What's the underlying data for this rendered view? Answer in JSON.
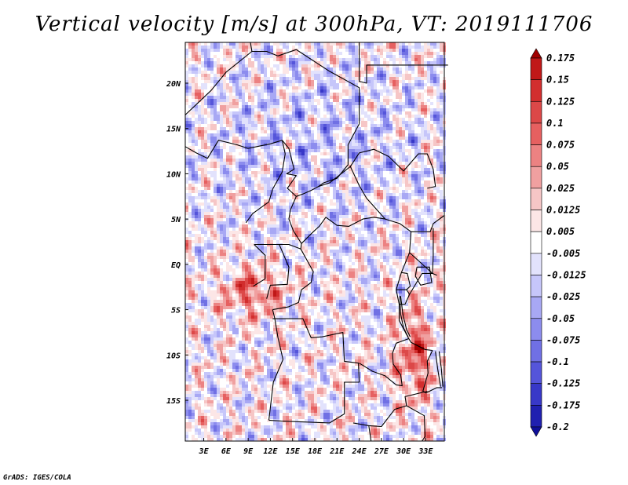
{
  "title": "Vertical velocity [m/s] at 300hPa, VT: 2019111706",
  "credit": "GrADS: IGES/COLA",
  "chart_data": {
    "type": "heatmap",
    "title": "Vertical velocity [m/s] at 300hPa, VT: 2019111706",
    "variable": "Vertical velocity",
    "units": "m/s",
    "level": "300hPa",
    "valid_time": "2019111706",
    "x_range": [
      0.5,
      35.5
    ],
    "y_range": [
      -19.5,
      24.5
    ],
    "x_ticks": [
      {
        "value": 3,
        "label": "3E"
      },
      {
        "value": 6,
        "label": "6E"
      },
      {
        "value": 9,
        "label": "9E"
      },
      {
        "value": 12,
        "label": "12E"
      },
      {
        "value": 15,
        "label": "15E"
      },
      {
        "value": 18,
        "label": "18E"
      },
      {
        "value": 21,
        "label": "21E"
      },
      {
        "value": 24,
        "label": "24E"
      },
      {
        "value": 27,
        "label": "27E"
      },
      {
        "value": 30,
        "label": "30E"
      },
      {
        "value": 33,
        "label": "33E"
      }
    ],
    "y_ticks": [
      {
        "value": 20,
        "label": "20N"
      },
      {
        "value": 15,
        "label": "15N"
      },
      {
        "value": 10,
        "label": "10N"
      },
      {
        "value": 5,
        "label": "5N"
      },
      {
        "value": 0,
        "label": "EQ"
      },
      {
        "value": -5,
        "label": "5S"
      },
      {
        "value": -10,
        "label": "10S"
      },
      {
        "value": -15,
        "label": "15S"
      }
    ],
    "colorbar": {
      "levels": [
        "0.175",
        "0.15",
        "0.125",
        "0.1",
        "0.075",
        "0.05",
        "0.025",
        "0.0125",
        "0.005",
        "-0.005",
        "-0.0125",
        "-0.025",
        "-0.05",
        "-0.075",
        "-0.1",
        "-0.125",
        "-0.175",
        "-0.2"
      ],
      "colors": [
        "#a00000",
        "#c01818",
        "#d22e2e",
        "#dc4848",
        "#e66060",
        "#ec8282",
        "#f0a0a0",
        "#f6c6c6",
        "#fce6e6",
        "#ffffff",
        "#e2e2fc",
        "#c6c6fa",
        "#a8a8f4",
        "#8c8cee",
        "#7070e4",
        "#5555da",
        "#3838c8",
        "#2020b0",
        "#10109a"
      ]
    }
  }
}
